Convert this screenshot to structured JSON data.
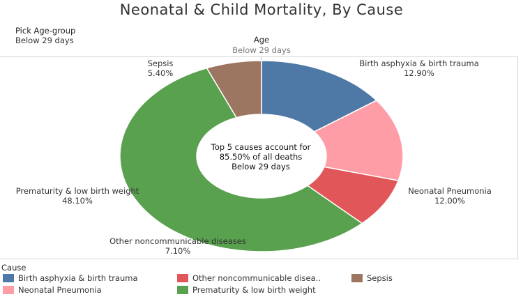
{
  "title": "Neonatal & Child Mortality, By Cause",
  "filter": {
    "label": "Pick Age-group",
    "value": "Below 29 days"
  },
  "panel": {
    "label": "Age",
    "value": "Below 29 days"
  },
  "center_text": [
    "Top 5 causes account for",
    "85.50% of all deaths",
    "Below 29 days"
  ],
  "legend": {
    "title": "Cause",
    "items": [
      {
        "label": "Birth asphyxia & birth trauma",
        "color": "#4e79a7"
      },
      {
        "label": "Other noncommunicable disea..",
        "color": "#e15759"
      },
      {
        "label": "Sepsis",
        "color": "#9c7660"
      },
      {
        "label": "Neonatal Pneumonia",
        "color": "#ff9da7"
      },
      {
        "label": "Prematurity & low birth weight",
        "color": "#59a14f"
      }
    ]
  },
  "chart_data": {
    "type": "pie",
    "donut": true,
    "title": "Neonatal & Child Mortality, By Cause",
    "slices": [
      {
        "label": "Birth asphyxia & birth trauma",
        "value": 12.9,
        "value_label": "12.90%",
        "color": "#4e79a7"
      },
      {
        "label": "Neonatal Pneumonia",
        "value": 12.0,
        "value_label": "12.00%",
        "color": "#ff9da7"
      },
      {
        "label": "Other noncommunicable diseases",
        "value": 7.1,
        "value_label": "7.10%",
        "color": "#e15759"
      },
      {
        "label": "Prematurity & low birth weight",
        "value": 48.1,
        "value_label": "48.10%",
        "color": "#59a14f"
      },
      {
        "label": "Sepsis",
        "value": 5.4,
        "value_label": "5.40%",
        "color": "#9c7660"
      }
    ],
    "legend_position": "bottom"
  }
}
